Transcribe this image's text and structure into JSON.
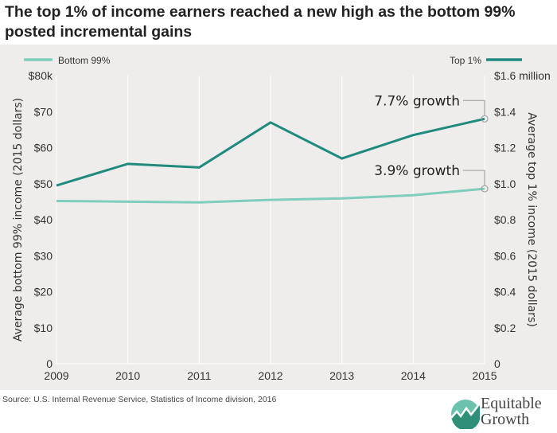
{
  "title": "The top 1% of income earners reached a new high as the bottom 99% posted incremental gains",
  "source": "Source: U.S. Internal Revenue Service, Statistics of Income division, 2016",
  "logo": {
    "line1": "Equitable",
    "line2": "Growth"
  },
  "colors": {
    "bottom99": "#7ecdbd",
    "top1": "#1f8a7e",
    "background": "#efedeb",
    "logo": "#3a9e88"
  },
  "chart_data": {
    "type": "line",
    "title": "The top 1% of income earners reached a new high as the bottom 99% posted incremental gains",
    "x": [
      2009,
      2010,
      2011,
      2012,
      2013,
      2014,
      2015
    ],
    "series": [
      {
        "name": "Bottom 99%",
        "axis": "left",
        "values": [
          45.2,
          45.0,
          44.8,
          45.5,
          45.9,
          46.8,
          48.6
        ]
      },
      {
        "name": "Top 1%",
        "axis": "right",
        "values": [
          0.99,
          1.11,
          1.09,
          1.34,
          1.14,
          1.27,
          1.36
        ]
      }
    ],
    "ylabel_left": "Average bottom 99% income (2015 dollars)",
    "ylabel_right": "Average top 1% income (2015 dollars)",
    "ylim_left": [
      0,
      80
    ],
    "ylim_right": [
      0,
      1.6
    ],
    "yticks_left": [
      "0",
      "$10",
      "$20",
      "$30",
      "$40",
      "$50",
      "$60",
      "$70",
      "$80k"
    ],
    "yticks_right": [
      "0",
      "$0.2",
      "$0.4",
      "$0.6",
      "$0.8",
      "$1.0",
      "$1.2",
      "$1.4",
      "$1.6 million"
    ],
    "xticks": [
      "2009",
      "2010",
      "2011",
      "2012",
      "2013",
      "2014",
      "2015"
    ],
    "annotations": [
      {
        "text": "7.7% growth",
        "series": "Top 1%",
        "x": 2015
      },
      {
        "text": "3.9% growth",
        "series": "Bottom 99%",
        "x": 2015
      }
    ],
    "grid": "vertical",
    "legend": "top"
  }
}
